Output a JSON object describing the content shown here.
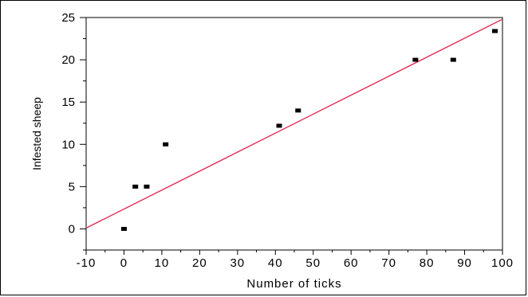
{
  "chart_data": {
    "type": "scatter",
    "title": "",
    "xlabel": "Number of ticks",
    "ylabel": "Infested sheep",
    "xlim": [
      -10,
      100
    ],
    "ylim": [
      -2.5,
      25
    ],
    "x_ticks": [
      -10,
      0,
      10,
      20,
      30,
      40,
      50,
      60,
      70,
      80,
      90,
      100
    ],
    "x_tick_labels": [
      "-10",
      "0",
      "10",
      "20",
      "30",
      "40",
      "50",
      "60",
      "70",
      "80",
      "90",
      "100"
    ],
    "y_ticks": [
      0,
      5,
      10,
      15,
      20,
      25
    ],
    "y_tick_labels": [
      "0",
      "5",
      "10",
      "15",
      "20",
      "25"
    ],
    "grid": false,
    "series": [
      {
        "points": [
          {
            "x": 0,
            "y": 0
          },
          {
            "x": 3,
            "y": 5
          },
          {
            "x": 6,
            "y": 5
          },
          {
            "x": 11,
            "y": 10
          },
          {
            "x": 41,
            "y": 12.2
          },
          {
            "x": 46,
            "y": 14
          },
          {
            "x": 77,
            "y": 20
          },
          {
            "x": 87,
            "y": 20
          },
          {
            "x": 98,
            "y": 23.4
          }
        ],
        "color": "#000000"
      }
    ],
    "trend_line": {
      "from": {
        "x": -10,
        "y": 0.1
      },
      "to": {
        "x": 100,
        "y": 24.8
      },
      "color": "#e0305a"
    }
  }
}
